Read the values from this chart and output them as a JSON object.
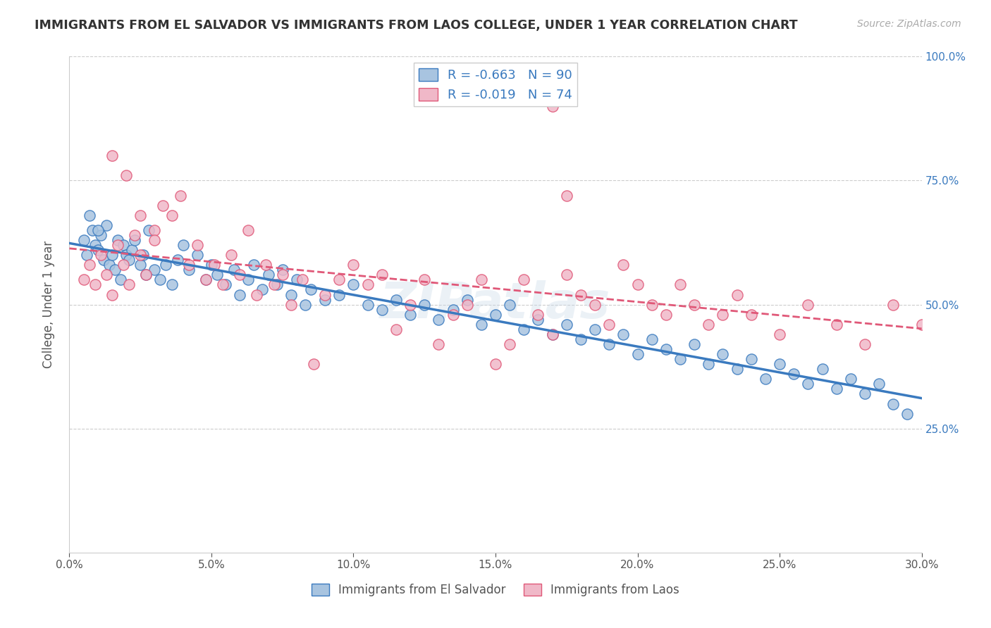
{
  "title": "IMMIGRANTS FROM EL SALVADOR VS IMMIGRANTS FROM LAOS COLLEGE, UNDER 1 YEAR CORRELATION CHART",
  "source": "Source: ZipAtlas.com",
  "ylabel": "College, Under 1 year",
  "ylabel_right_ticks": [
    "100.0%",
    "75.0%",
    "50.0%",
    "25.0%"
  ],
  "ylabel_right_vals": [
    1.0,
    0.75,
    0.5,
    0.25
  ],
  "x_min": 0.0,
  "x_max": 0.3,
  "y_min": 0.0,
  "y_max": 1.0,
  "R_blue": -0.663,
  "N_blue": 90,
  "R_pink": -0.019,
  "N_pink": 74,
  "color_blue": "#a8c4e0",
  "color_blue_line": "#3a7abf",
  "color_pink": "#f0b8c8",
  "color_pink_line": "#e05878",
  "watermark": "ZIPatlas",
  "blue_x": [
    0.005,
    0.007,
    0.008,
    0.006,
    0.009,
    0.01,
    0.011,
    0.012,
    0.013,
    0.014,
    0.015,
    0.016,
    0.017,
    0.018,
    0.019,
    0.02,
    0.021,
    0.022,
    0.023,
    0.025,
    0.026,
    0.027,
    0.028,
    0.03,
    0.032,
    0.034,
    0.036,
    0.038,
    0.04,
    0.042,
    0.045,
    0.048,
    0.05,
    0.052,
    0.055,
    0.058,
    0.06,
    0.063,
    0.065,
    0.068,
    0.07,
    0.073,
    0.075,
    0.078,
    0.08,
    0.083,
    0.085,
    0.09,
    0.095,
    0.1,
    0.105,
    0.11,
    0.115,
    0.12,
    0.125,
    0.13,
    0.135,
    0.14,
    0.145,
    0.15,
    0.155,
    0.16,
    0.165,
    0.17,
    0.175,
    0.18,
    0.185,
    0.19,
    0.195,
    0.2,
    0.205,
    0.21,
    0.215,
    0.22,
    0.225,
    0.23,
    0.235,
    0.24,
    0.245,
    0.25,
    0.255,
    0.26,
    0.265,
    0.27,
    0.275,
    0.28,
    0.285,
    0.29,
    0.295,
    0.01
  ],
  "blue_y": [
    0.63,
    0.68,
    0.65,
    0.6,
    0.62,
    0.61,
    0.64,
    0.59,
    0.66,
    0.58,
    0.6,
    0.57,
    0.63,
    0.55,
    0.62,
    0.6,
    0.59,
    0.61,
    0.63,
    0.58,
    0.6,
    0.56,
    0.65,
    0.57,
    0.55,
    0.58,
    0.54,
    0.59,
    0.62,
    0.57,
    0.6,
    0.55,
    0.58,
    0.56,
    0.54,
    0.57,
    0.52,
    0.55,
    0.58,
    0.53,
    0.56,
    0.54,
    0.57,
    0.52,
    0.55,
    0.5,
    0.53,
    0.51,
    0.52,
    0.54,
    0.5,
    0.49,
    0.51,
    0.48,
    0.5,
    0.47,
    0.49,
    0.51,
    0.46,
    0.48,
    0.5,
    0.45,
    0.47,
    0.44,
    0.46,
    0.43,
    0.45,
    0.42,
    0.44,
    0.4,
    0.43,
    0.41,
    0.39,
    0.42,
    0.38,
    0.4,
    0.37,
    0.39,
    0.35,
    0.38,
    0.36,
    0.34,
    0.37,
    0.33,
    0.35,
    0.32,
    0.34,
    0.3,
    0.28,
    0.65
  ],
  "pink_x": [
    0.005,
    0.007,
    0.009,
    0.011,
    0.013,
    0.015,
    0.017,
    0.019,
    0.021,
    0.023,
    0.025,
    0.027,
    0.03,
    0.033,
    0.036,
    0.039,
    0.042,
    0.045,
    0.048,
    0.051,
    0.054,
    0.057,
    0.06,
    0.063,
    0.066,
    0.069,
    0.072,
    0.075,
    0.078,
    0.082,
    0.086,
    0.09,
    0.095,
    0.1,
    0.105,
    0.11,
    0.115,
    0.12,
    0.125,
    0.13,
    0.135,
    0.14,
    0.145,
    0.15,
    0.155,
    0.16,
    0.165,
    0.17,
    0.175,
    0.18,
    0.185,
    0.19,
    0.195,
    0.2,
    0.205,
    0.21,
    0.215,
    0.22,
    0.225,
    0.23,
    0.235,
    0.24,
    0.25,
    0.26,
    0.27,
    0.28,
    0.29,
    0.3,
    0.17,
    0.175,
    0.015,
    0.02,
    0.025,
    0.03
  ],
  "pink_y": [
    0.55,
    0.58,
    0.54,
    0.6,
    0.56,
    0.52,
    0.62,
    0.58,
    0.54,
    0.64,
    0.6,
    0.56,
    0.65,
    0.7,
    0.68,
    0.72,
    0.58,
    0.62,
    0.55,
    0.58,
    0.54,
    0.6,
    0.56,
    0.65,
    0.52,
    0.58,
    0.54,
    0.56,
    0.5,
    0.55,
    0.38,
    0.52,
    0.55,
    0.58,
    0.54,
    0.56,
    0.45,
    0.5,
    0.55,
    0.42,
    0.48,
    0.5,
    0.55,
    0.38,
    0.42,
    0.55,
    0.48,
    0.44,
    0.56,
    0.52,
    0.5,
    0.46,
    0.58,
    0.54,
    0.5,
    0.48,
    0.54,
    0.5,
    0.46,
    0.48,
    0.52,
    0.48,
    0.44,
    0.5,
    0.46,
    0.42,
    0.5,
    0.46,
    0.9,
    0.72,
    0.8,
    0.76,
    0.68,
    0.63
  ]
}
